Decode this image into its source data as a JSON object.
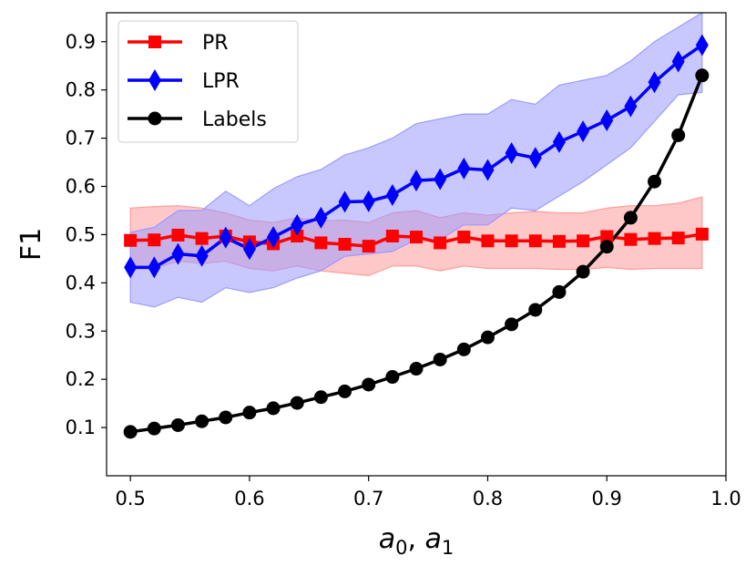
{
  "chart_data": {
    "type": "line",
    "title": "",
    "xlabel": "a0, a1",
    "xlabel_parts": {
      "base1": "a",
      "sub1": "0",
      "sep": ", ",
      "base2": "a",
      "sub2": "1"
    },
    "ylabel": "F1",
    "xlim": [
      0.48,
      1.0
    ],
    "ylim": [
      0.0,
      0.96
    ],
    "xticks": [
      0.5,
      0.6,
      0.7,
      0.8,
      0.9,
      1.0
    ],
    "xtick_labels": [
      "0.5",
      "0.6",
      "0.7",
      "0.8",
      "0.9",
      "1.0"
    ],
    "yticks": [
      0.1,
      0.2,
      0.3,
      0.4,
      0.5,
      0.6,
      0.7,
      0.8,
      0.9
    ],
    "ytick_labels": [
      "0.1",
      "0.2",
      "0.3",
      "0.4",
      "0.5",
      "0.6",
      "0.7",
      "0.8",
      "0.9"
    ],
    "grid": false,
    "legend_position": "top-left",
    "x": [
      0.5,
      0.52,
      0.54,
      0.56,
      0.58,
      0.6,
      0.62,
      0.64,
      0.66,
      0.68,
      0.7,
      0.72,
      0.74,
      0.76,
      0.78,
      0.8,
      0.82,
      0.84,
      0.86,
      0.88,
      0.9,
      0.92,
      0.94,
      0.96,
      0.98
    ],
    "series": [
      {
        "name": "PR",
        "color": "#ff0000",
        "band_color": "#ff9b9b",
        "marker": "square",
        "values": [
          0.488,
          0.489,
          0.499,
          0.492,
          0.497,
          0.485,
          0.481,
          0.497,
          0.483,
          0.48,
          0.476,
          0.497,
          0.495,
          0.483,
          0.495,
          0.487,
          0.487,
          0.487,
          0.486,
          0.487,
          0.496,
          0.49,
          0.492,
          0.493,
          0.501
        ],
        "upper": [
          0.555,
          0.558,
          0.56,
          0.555,
          0.545,
          0.53,
          0.525,
          0.535,
          0.528,
          0.53,
          0.525,
          0.545,
          0.55,
          0.535,
          0.545,
          0.54,
          0.545,
          0.548,
          0.545,
          0.545,
          0.555,
          0.56,
          0.56,
          0.565,
          0.578
        ],
        "lower": [
          0.43,
          0.43,
          0.445,
          0.44,
          0.445,
          0.43,
          0.425,
          0.435,
          0.425,
          0.42,
          0.415,
          0.435,
          0.435,
          0.425,
          0.435,
          0.43,
          0.43,
          0.43,
          0.428,
          0.428,
          0.432,
          0.428,
          0.43,
          0.43,
          0.43
        ]
      },
      {
        "name": "LPR",
        "color": "#0000ff",
        "band_color": "#9b9bff",
        "marker": "diamond",
        "values": [
          0.432,
          0.432,
          0.46,
          0.456,
          0.494,
          0.47,
          0.495,
          0.52,
          0.535,
          0.568,
          0.569,
          0.582,
          0.612,
          0.615,
          0.637,
          0.634,
          0.669,
          0.659,
          0.692,
          0.714,
          0.737,
          0.766,
          0.816,
          0.859,
          0.893
        ],
        "upper": [
          0.505,
          0.515,
          0.55,
          0.55,
          0.59,
          0.56,
          0.595,
          0.62,
          0.635,
          0.665,
          0.68,
          0.7,
          0.73,
          0.74,
          0.75,
          0.75,
          0.78,
          0.77,
          0.81,
          0.82,
          0.83,
          0.86,
          0.9,
          0.93,
          0.96
        ],
        "lower": [
          0.36,
          0.35,
          0.37,
          0.36,
          0.39,
          0.38,
          0.39,
          0.41,
          0.425,
          0.455,
          0.46,
          0.465,
          0.49,
          0.49,
          0.52,
          0.52,
          0.555,
          0.55,
          0.58,
          0.61,
          0.645,
          0.68,
          0.735,
          0.79,
          0.795
        ]
      },
      {
        "name": "Labels",
        "color": "#000000",
        "band_color": null,
        "marker": "circle",
        "values": [
          0.091,
          0.098,
          0.105,
          0.113,
          0.121,
          0.131,
          0.14,
          0.151,
          0.163,
          0.175,
          0.189,
          0.205,
          0.222,
          0.241,
          0.262,
          0.287,
          0.314,
          0.344,
          0.381,
          0.423,
          0.475,
          0.535,
          0.61,
          0.706,
          0.83
        ]
      }
    ]
  }
}
